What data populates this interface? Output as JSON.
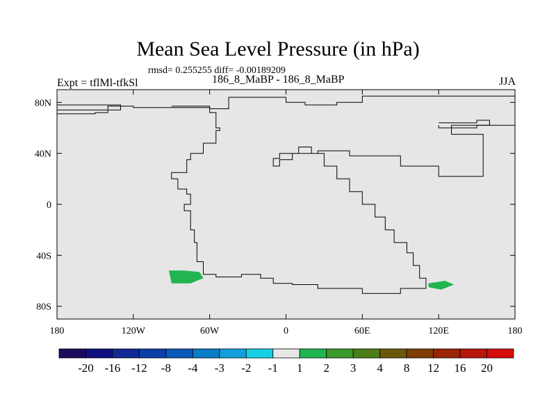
{
  "chart_data": {
    "type": "heatmap",
    "title": "Mean Sea Level Pressure (in hPa)",
    "stats": "rmsd= 0.255255 diff= -0.00189209",
    "subtitle": "186_8_MaBP - 186_8_MaBP",
    "experiment": "Expt = tflMl-tfkSl",
    "season": "JJA",
    "xlim": [
      -180,
      180
    ],
    "ylim": [
      -90,
      90
    ],
    "x_ticks": [
      {
        "value": -180,
        "label": "180"
      },
      {
        "value": -120,
        "label": "120W"
      },
      {
        "value": -60,
        "label": "60W"
      },
      {
        "value": 0,
        "label": "0"
      },
      {
        "value": 60,
        "label": "60E"
      },
      {
        "value": 120,
        "label": "120E"
      },
      {
        "value": 180,
        "label": "180"
      }
    ],
    "y_ticks": [
      {
        "value": 80,
        "label": "80N"
      },
      {
        "value": 40,
        "label": "40N"
      },
      {
        "value": 0,
        "label": "0"
      },
      {
        "value": -40,
        "label": "40S"
      },
      {
        "value": -80,
        "label": "80S"
      }
    ],
    "background_color": "#e6e6e6",
    "continent_outline": [
      [
        [
          -180,
          78
        ],
        [
          -130,
          78
        ],
        [
          -130,
          74
        ],
        [
          -180,
          74
        ]
      ],
      [
        [
          -180,
          71
        ],
        [
          -150,
          72
        ],
        [
          -140,
          77
        ],
        [
          -120,
          76
        ],
        [
          -60,
          75
        ],
        [
          -45,
          84
        ],
        [
          -20,
          84
        ],
        [
          0,
          80
        ],
        [
          15,
          78
        ],
        [
          40,
          80
        ],
        [
          60,
          85
        ],
        [
          180,
          87
        ]
      ],
      [
        [
          -90,
          77
        ],
        [
          -60,
          72
        ],
        [
          -55,
          60
        ],
        [
          -52,
          58
        ],
        [
          -55,
          48
        ],
        [
          -65,
          40
        ],
        [
          -75,
          35
        ],
        [
          -78,
          25
        ],
        [
          -90,
          20
        ],
        [
          -85,
          12
        ],
        [
          -78,
          8
        ],
        [
          -75,
          0
        ],
        [
          -80,
          -5
        ],
        [
          -75,
          -20
        ],
        [
          -72,
          -30
        ],
        [
          -70,
          -45
        ],
        [
          -65,
          -55
        ],
        [
          -55,
          -57
        ],
        [
          -35,
          -55
        ],
        [
          -20,
          -58
        ],
        [
          -10,
          -62
        ],
        [
          5,
          -63
        ],
        [
          25,
          -66
        ],
        [
          60,
          -70
        ],
        [
          90,
          -66
        ],
        [
          110,
          -58
        ],
        [
          105,
          -48
        ],
        [
          100,
          -38
        ],
        [
          95,
          -30
        ],
        [
          85,
          -20
        ],
        [
          78,
          -10
        ],
        [
          70,
          0
        ],
        [
          60,
          10
        ],
        [
          50,
          20
        ],
        [
          40,
          30
        ],
        [
          30,
          40
        ],
        [
          20,
          45
        ],
        [
          10,
          40
        ],
        [
          -5,
          36
        ],
        [
          -10,
          30
        ],
        [
          -5,
          35
        ],
        [
          5,
          40
        ],
        [
          25,
          42
        ],
        [
          50,
          38
        ],
        [
          90,
          30
        ],
        [
          120,
          22
        ],
        [
          155,
          55
        ],
        [
          130,
          62
        ],
        [
          180,
          68
        ]
      ],
      [
        [
          120,
          64
        ],
        [
          150,
          66
        ],
        [
          160,
          62
        ],
        [
          150,
          60
        ],
        [
          120,
          62
        ]
      ]
    ],
    "anomaly_regions": [
      {
        "value": 1.5,
        "points": [
          [
            -92,
            -52
          ],
          [
            -80,
            -52
          ],
          [
            -68,
            -53
          ],
          [
            -65,
            -58
          ],
          [
            -75,
            -62
          ],
          [
            -90,
            -62
          ]
        ]
      },
      {
        "value": 1.5,
        "points": [
          [
            112,
            -62
          ],
          [
            125,
            -60
          ],
          [
            132,
            -63
          ],
          [
            122,
            -67
          ],
          [
            112,
            -65
          ]
        ]
      }
    ],
    "colorbar": {
      "colors": [
        "#1c0a5a",
        "#101080",
        "#0f2a94",
        "#0c3ea8",
        "#0a58b8",
        "#0a7cc8",
        "#12a0dc",
        "#18d0e4",
        "#e6e6e6",
        "#21b552",
        "#3b9a2c",
        "#4d7e16",
        "#69580a",
        "#7e3e06",
        "#9a2406",
        "#b8160a",
        "#d60c0c"
      ],
      "labels": [
        "-20",
        "-16",
        "-12",
        "-8",
        "-4",
        "-3",
        "-2",
        "-1",
        "1",
        "2",
        "3",
        "4",
        "8",
        "12",
        "16",
        "20"
      ]
    }
  }
}
